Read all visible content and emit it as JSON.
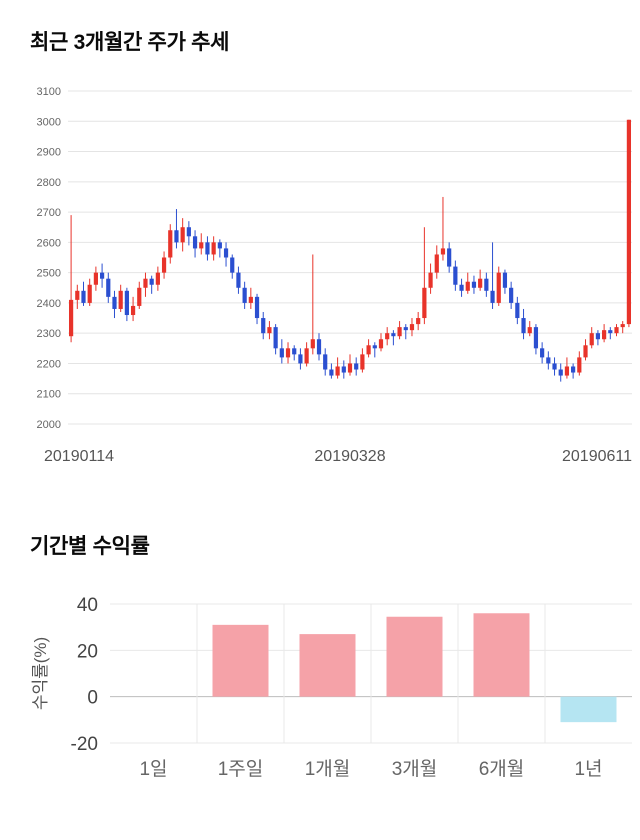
{
  "price_section": {
    "title": "최근 3개월간 주가 추세"
  },
  "returns_section": {
    "title": "기간별 수익률"
  },
  "chart_data": [
    {
      "type": "candlestick",
      "title": "최근 3개월간 주가 추세",
      "ylim": [
        2000,
        3100
      ],
      "y_ticks": [
        3100,
        3000,
        2900,
        2800,
        2700,
        2600,
        2500,
        2400,
        2300,
        2200,
        2100,
        2000
      ],
      "x_tick_labels": [
        "20190114",
        "20190328",
        "20190611"
      ],
      "grid": true,
      "up_color": "#e8332a",
      "down_color": "#2b4fd0",
      "ohlc": [
        [
          2290,
          2690,
          2270,
          2410
        ],
        [
          2410,
          2460,
          2380,
          2440
        ],
        [
          2440,
          2470,
          2390,
          2400
        ],
        [
          2400,
          2480,
          2390,
          2460
        ],
        [
          2460,
          2520,
          2440,
          2500
        ],
        [
          2500,
          2530,
          2450,
          2480
        ],
        [
          2480,
          2500,
          2400,
          2420
        ],
        [
          2420,
          2440,
          2350,
          2380
        ],
        [
          2380,
          2460,
          2370,
          2440
        ],
        [
          2440,
          2450,
          2340,
          2360
        ],
        [
          2360,
          2420,
          2340,
          2390
        ],
        [
          2390,
          2470,
          2380,
          2450
        ],
        [
          2450,
          2500,
          2420,
          2480
        ],
        [
          2480,
          2490,
          2430,
          2460
        ],
        [
          2460,
          2520,
          2440,
          2500
        ],
        [
          2500,
          2570,
          2480,
          2550
        ],
        [
          2550,
          2660,
          2530,
          2640
        ],
        [
          2640,
          2710,
          2580,
          2600
        ],
        [
          2600,
          2680,
          2570,
          2650
        ],
        [
          2650,
          2670,
          2590,
          2620
        ],
        [
          2620,
          2640,
          2550,
          2580
        ],
        [
          2580,
          2630,
          2560,
          2600
        ],
        [
          2600,
          2620,
          2540,
          2560
        ],
        [
          2560,
          2620,
          2540,
          2600
        ],
        [
          2600,
          2610,
          2550,
          2580
        ],
        [
          2580,
          2600,
          2520,
          2550
        ],
        [
          2550,
          2560,
          2480,
          2500
        ],
        [
          2500,
          2520,
          2430,
          2450
        ],
        [
          2450,
          2470,
          2380,
          2400
        ],
        [
          2400,
          2450,
          2380,
          2420
        ],
        [
          2420,
          2430,
          2330,
          2350
        ],
        [
          2350,
          2370,
          2280,
          2300
        ],
        [
          2300,
          2340,
          2280,
          2320
        ],
        [
          2320,
          2330,
          2230,
          2250
        ],
        [
          2250,
          2280,
          2200,
          2220
        ],
        [
          2220,
          2270,
          2200,
          2250
        ],
        [
          2250,
          2260,
          2210,
          2230
        ],
        [
          2230,
          2250,
          2180,
          2200
        ],
        [
          2200,
          2270,
          2190,
          2250
        ],
        [
          2250,
          2560,
          2230,
          2280
        ],
        [
          2280,
          2300,
          2210,
          2230
        ],
        [
          2230,
          2250,
          2160,
          2180
        ],
        [
          2180,
          2200,
          2150,
          2160
        ],
        [
          2160,
          2220,
          2150,
          2190
        ],
        [
          2190,
          2210,
          2150,
          2170
        ],
        [
          2170,
          2230,
          2160,
          2200
        ],
        [
          2200,
          2220,
          2160,
          2180
        ],
        [
          2180,
          2250,
          2170,
          2230
        ],
        [
          2230,
          2280,
          2220,
          2260
        ],
        [
          2260,
          2270,
          2220,
          2250
        ],
        [
          2250,
          2300,
          2240,
          2280
        ],
        [
          2280,
          2320,
          2260,
          2300
        ],
        [
          2300,
          2310,
          2260,
          2290
        ],
        [
          2290,
          2340,
          2280,
          2320
        ],
        [
          2320,
          2330,
          2280,
          2310
        ],
        [
          2310,
          2350,
          2290,
          2330
        ],
        [
          2330,
          2370,
          2310,
          2350
        ],
        [
          2350,
          2650,
          2330,
          2450
        ],
        [
          2450,
          2530,
          2430,
          2500
        ],
        [
          2500,
          2590,
          2480,
          2560
        ],
        [
          2560,
          2750,
          2540,
          2580
        ],
        [
          2580,
          2600,
          2500,
          2520
        ],
        [
          2520,
          2540,
          2440,
          2460
        ],
        [
          2460,
          2480,
          2420,
          2440
        ],
        [
          2440,
          2500,
          2430,
          2470
        ],
        [
          2470,
          2490,
          2430,
          2450
        ],
        [
          2450,
          2510,
          2440,
          2480
        ],
        [
          2480,
          2500,
          2420,
          2440
        ],
        [
          2440,
          2600,
          2380,
          2400
        ],
        [
          2400,
          2520,
          2390,
          2500
        ],
        [
          2500,
          2510,
          2430,
          2450
        ],
        [
          2450,
          2470,
          2380,
          2400
        ],
        [
          2400,
          2420,
          2330,
          2350
        ],
        [
          2350,
          2380,
          2280,
          2300
        ],
        [
          2300,
          2340,
          2290,
          2320
        ],
        [
          2320,
          2330,
          2230,
          2250
        ],
        [
          2250,
          2270,
          2200,
          2220
        ],
        [
          2220,
          2240,
          2180,
          2200
        ],
        [
          2200,
          2220,
          2160,
          2180
        ],
        [
          2180,
          2200,
          2140,
          2160
        ],
        [
          2160,
          2220,
          2150,
          2190
        ],
        [
          2190,
          2200,
          2150,
          2170
        ],
        [
          2170,
          2240,
          2160,
          2220
        ],
        [
          2220,
          2280,
          2210,
          2260
        ],
        [
          2260,
          2320,
          2250,
          2300
        ],
        [
          2300,
          2310,
          2260,
          2280
        ],
        [
          2280,
          2330,
          2270,
          2310
        ],
        [
          2310,
          2320,
          2280,
          2300
        ],
        [
          2300,
          2330,
          2290,
          2320
        ],
        [
          2320,
          2340,
          2300,
          2330
        ],
        [
          2330,
          3005,
          2320,
          3005
        ]
      ]
    },
    {
      "type": "bar",
      "title": "기간별 수익률",
      "categories": [
        "1일",
        "1주일",
        "1개월",
        "3개월",
        "6개월",
        "1년"
      ],
      "values": [
        0,
        31,
        27,
        34.5,
        36,
        -11
      ],
      "ylabel": "수익률(%)",
      "ylim": [
        -20,
        40
      ],
      "y_ticks": [
        40,
        20,
        0,
        -20
      ],
      "grid": true,
      "positive_color": "#f5a2a8",
      "negative_color": "#b5e5f2"
    }
  ]
}
